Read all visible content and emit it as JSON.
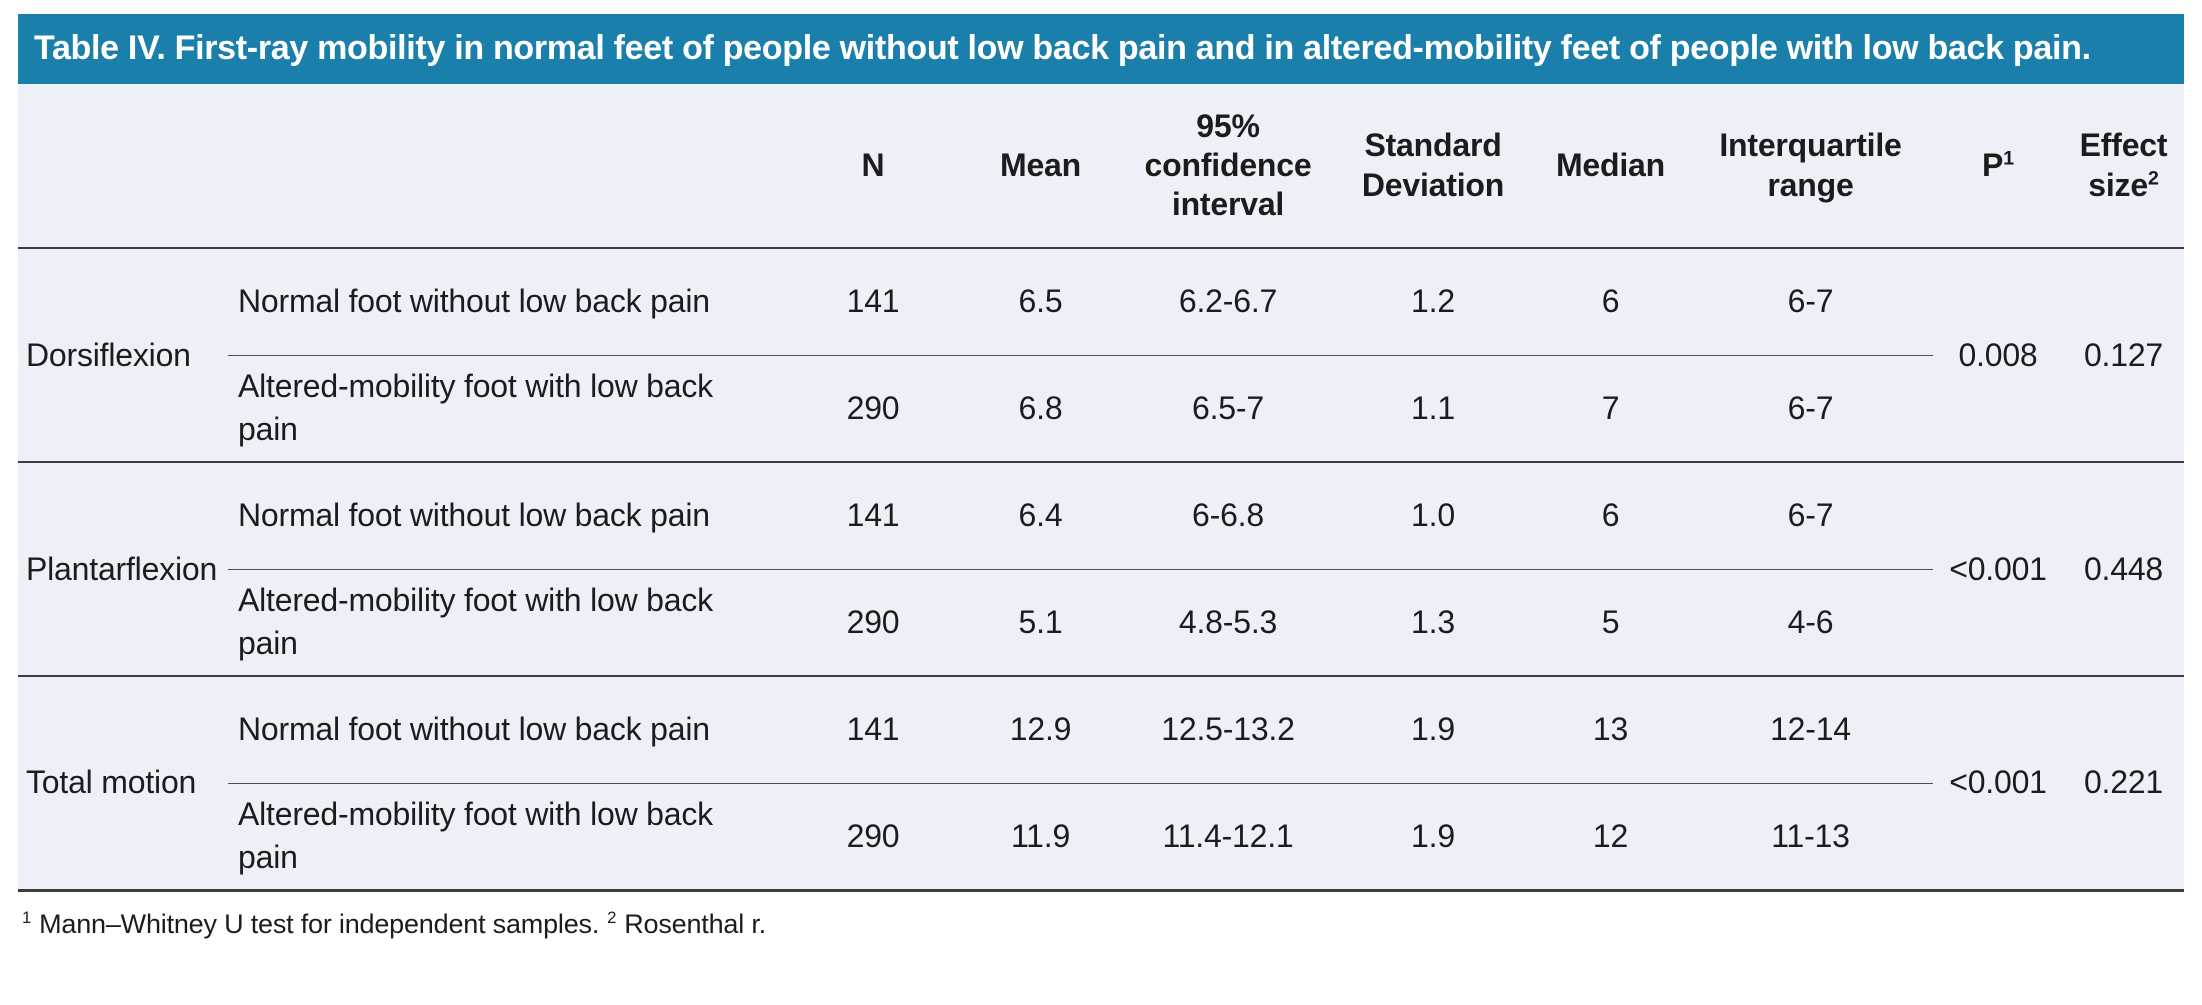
{
  "colors": {
    "header_bg": "#1A7FAB",
    "header_text": "#FFFFFF",
    "table_bg": "#EDF0F7",
    "text": "#1C1C1C",
    "line": "#3C3C3C"
  },
  "title": "Table IV. First-ray mobility in normal feet of people without low back pain and in altered-mobility feet of people with low back pain.",
  "table": {
    "columns": {
      "n": "N",
      "mean": "Mean",
      "ci": "95% confidence interval",
      "sd": "Standard Deviation",
      "median": "Median",
      "iqr": "Interquartile range",
      "p": "P",
      "p_sup": "1",
      "effect": "Effect size",
      "effect_sup": "2"
    },
    "groups": [
      {
        "name": "Dorsiflexion",
        "p": "0.008",
        "effect_size": "0.127",
        "rows": [
          {
            "label": "Normal foot without low back pain",
            "n": "141",
            "mean": "6.5",
            "ci": "6.2-6.7",
            "sd": "1.2",
            "median": "6",
            "iqr": "6-7"
          },
          {
            "label": "Altered-mobility foot with low back pain",
            "n": "290",
            "mean": "6.8",
            "ci": "6.5-7",
            "sd": "1.1",
            "median": "7",
            "iqr": "6-7"
          }
        ]
      },
      {
        "name": "Plantarflexion",
        "p": "<0.001",
        "effect_size": "0.448",
        "rows": [
          {
            "label": "Normal foot without low back pain",
            "n": "141",
            "mean": "6.4",
            "ci": "6-6.8",
            "sd": "1.0",
            "median": "6",
            "iqr": "6-7"
          },
          {
            "label": "Altered-mobility foot with low back pain",
            "n": "290",
            "mean": "5.1",
            "ci": "4.8-5.3",
            "sd": "1.3",
            "median": "5",
            "iqr": "4-6"
          }
        ]
      },
      {
        "name": "Total motion",
        "p": "<0.001",
        "effect_size": "0.221",
        "rows": [
          {
            "label": "Normal foot without low back pain",
            "n": "141",
            "mean": "12.9",
            "ci": "12.5-13.2",
            "sd": "1.9",
            "median": "13",
            "iqr": "12-14"
          },
          {
            "label": "Altered-mobility foot with low back pain",
            "n": "290",
            "mean": "11.9",
            "ci": "11.4-12.1",
            "sd": "1.9",
            "median": "12",
            "iqr": "11-13"
          }
        ]
      }
    ]
  },
  "footnote": {
    "sup1": "1",
    "text1": "Mann–Whitney U test for independent samples.",
    "sup2": "2",
    "text2": "Rosenthal r."
  }
}
